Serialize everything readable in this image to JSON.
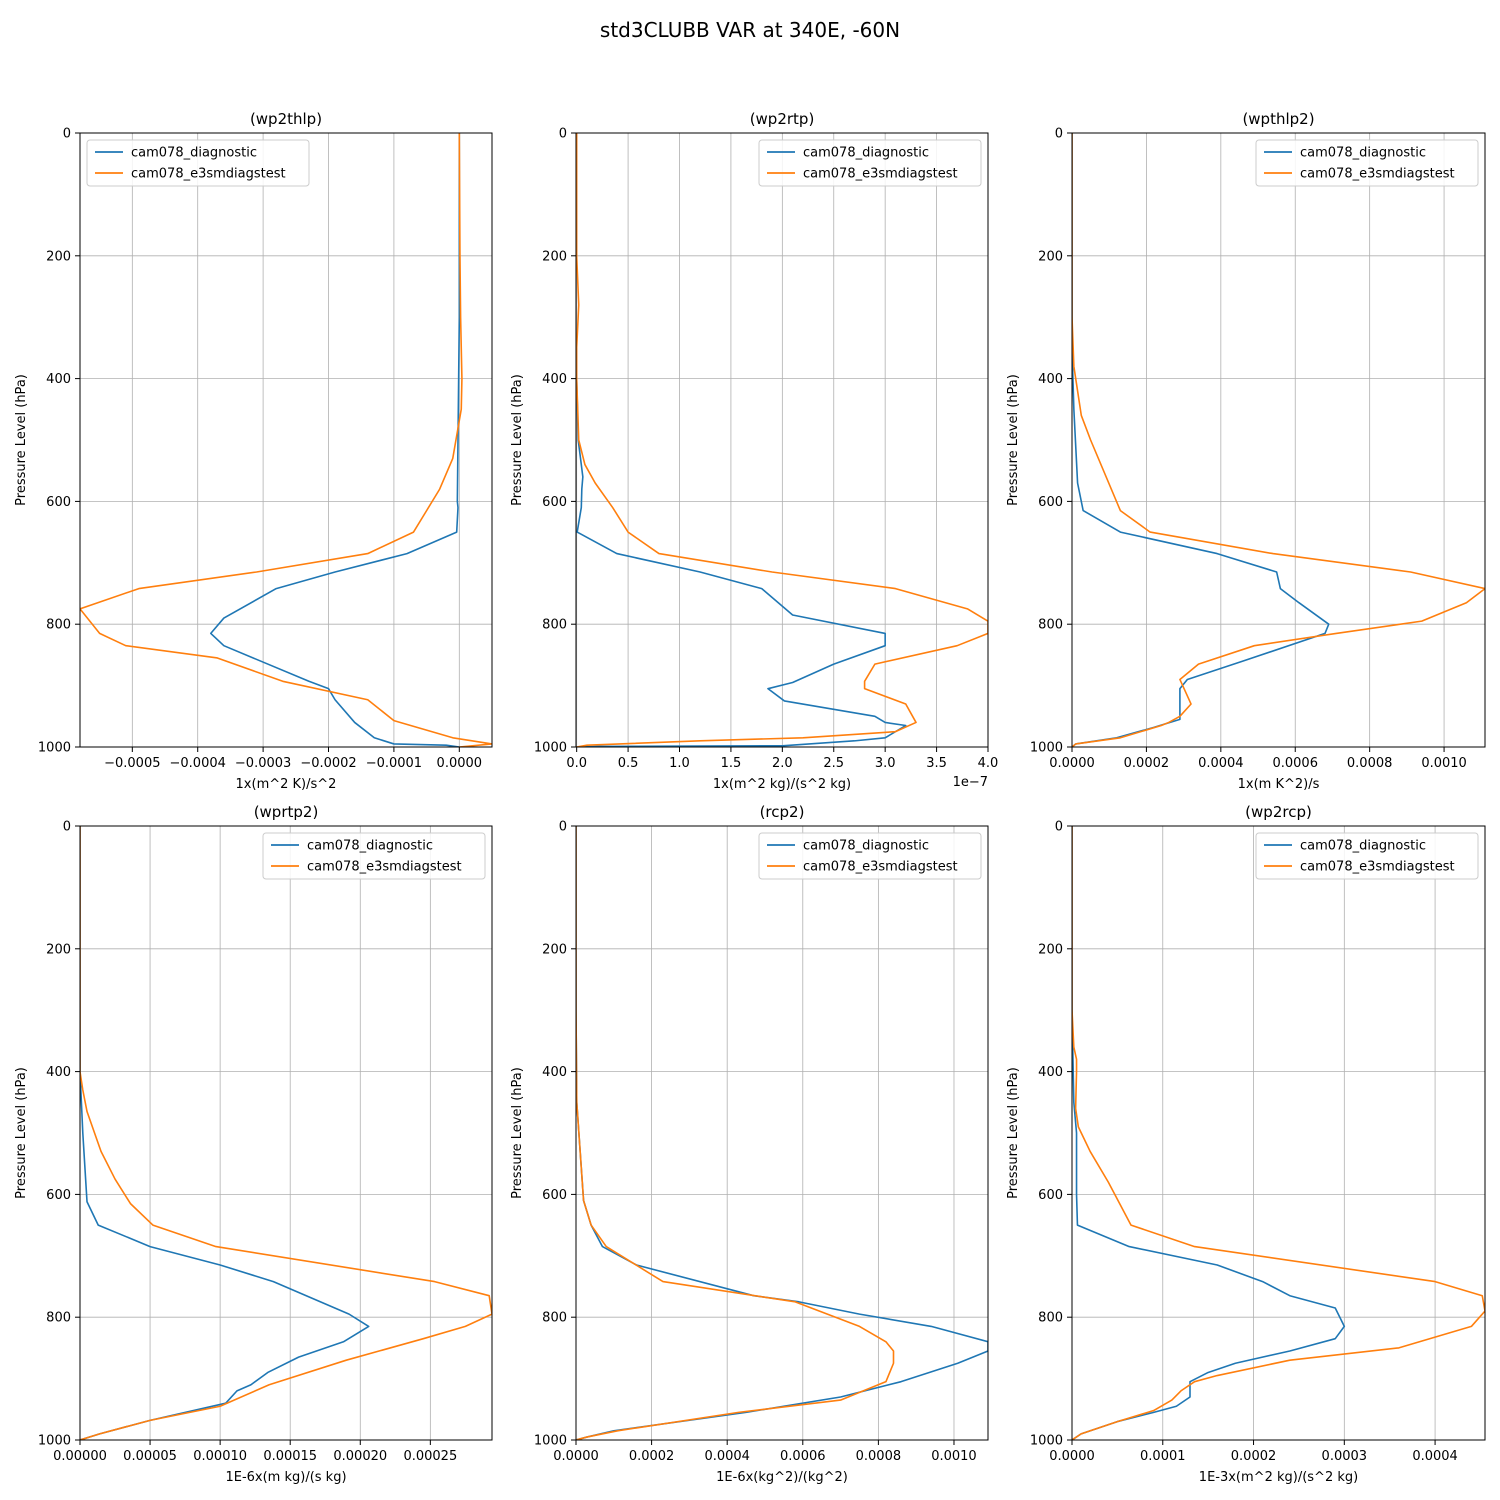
{
  "figure": {
    "suptitle": "std3CLUBB VAR at 340E, -60N",
    "series_names": [
      "cam078_diagnostic",
      "cam078_e3smdiagstest"
    ],
    "series_colors": [
      "#1f77b4",
      "#ff7f0e"
    ],
    "grid_color": "#b0b0b0"
  },
  "chart_data": [
    {
      "type": "line",
      "title": "(wp2thlp)",
      "xlabel": "1x(m^2 K)/s^2",
      "ylabel": "Pressure Level (hPa)",
      "xlim": [
        -0.00058,
        5e-05
      ],
      "ylim": [
        1000,
        0
      ],
      "xticks": [
        -0.0005,
        -0.0004,
        -0.0003,
        -0.0002,
        -0.0001,
        0.0
      ],
      "xtick_labels": [
        "−0.0005",
        "−0.0004",
        "−0.0003",
        "−0.0002",
        "−0.0001",
        "0.0000"
      ],
      "yticks": [
        0,
        200,
        400,
        600,
        800,
        1000
      ],
      "ytick_labels": [
        "0",
        "200",
        "400",
        "600",
        "800",
        "1000"
      ],
      "offset_text": "",
      "legend_loc": "upper left",
      "grid": true,
      "series": [
        {
          "name": "cam078_diagnostic",
          "x": [
            0.0,
            0.0,
            0.0,
            -1e-06,
            -2e-06,
            -3e-06,
            -2e-06,
            -4e-06,
            -8e-05,
            -0.00019,
            -0.00028,
            -0.00036,
            -0.00038,
            -0.00036,
            -0.00023,
            -0.0002,
            -0.00019,
            -0.00016,
            -0.00013,
            -0.0001,
            -2e-05,
            0.0
          ],
          "y": [
            0,
            200,
            300,
            400,
            500,
            600,
            610,
            650,
            685,
            715,
            742,
            790,
            815,
            835,
            893,
            905,
            923,
            960,
            985,
            995,
            997,
            1000
          ]
        },
        {
          "name": "cam078_e3smdiagstest",
          "x": [
            0.0,
            1e-06,
            2e-06,
            4e-06,
            3e-06,
            -1e-05,
            -3e-05,
            -5e-05,
            -7e-05,
            -0.00014,
            -0.00031,
            -0.00049,
            -0.00058,
            -0.00055,
            -0.00051,
            -0.00037,
            -0.00027,
            -0.00014,
            -0.0001,
            -1e-05,
            5e-05,
            0.0
          ],
          "y": [
            0,
            200,
            300,
            400,
            450,
            530,
            580,
            615,
            650,
            685,
            715,
            742,
            775,
            815,
            835,
            855,
            893,
            923,
            957,
            985,
            995,
            1000
          ]
        }
      ]
    },
    {
      "type": "line",
      "title": "(wp2rtp)",
      "xlabel": "1x(m^2 kg)/(s^2 kg)",
      "ylabel": "Pressure Level (hPa)",
      "xlim": [
        -6.5e-10,
        4e-07
      ],
      "ylim": [
        1000,
        0
      ],
      "xticks": [
        0.0,
        5e-08,
        1e-07,
        1.5e-07,
        2e-07,
        2.5e-07,
        3e-07,
        3.5e-07,
        4e-07
      ],
      "xtick_labels": [
        "0.0",
        "0.5",
        "1.0",
        "1.5",
        "2.0",
        "2.5",
        "3.0",
        "3.5",
        "4.0"
      ],
      "yticks": [
        0,
        200,
        400,
        600,
        800,
        1000
      ],
      "ytick_labels": [
        "0",
        "200",
        "400",
        "600",
        "800",
        "1000"
      ],
      "offset_text": "1e−7",
      "legend_loc": "upper right",
      "grid": true,
      "series": [
        {
          "name": "cam078_diagnostic",
          "x": [
            0.0,
            0.0,
            -5e-09,
            0.0,
            0.0,
            1.5e-09,
            6e-09,
            5e-09,
            4.5e-09,
            5e-10,
            3.9e-08,
            1.2e-07,
            1.8e-07,
            2.1e-07,
            3e-07,
            3e-07,
            2.5e-07,
            2.1e-07,
            1.86e-07,
            2.02e-07,
            2.9e-07,
            3e-07,
            3.2e-07,
            3e-07,
            2.7e-07,
            2e-07,
            2e-08,
            0.0
          ],
          "y": [
            0,
            200,
            300,
            350,
            400,
            500,
            560,
            580,
            610,
            650,
            685,
            715,
            742,
            785,
            815,
            835,
            865,
            895,
            905,
            925,
            950,
            960,
            965,
            985,
            990,
            998,
            999,
            1000
          ]
        },
        {
          "name": "cam078_e3smdiagstest",
          "x": [
            0.0,
            0.0,
            2e-09,
            0.0,
            0.0,
            2e-09,
            8e-09,
            1.8e-08,
            3.5e-08,
            5e-08,
            8e-08,
            1.9e-07,
            3.1e-07,
            3.8e-07,
            4e-07,
            4e-07,
            3.7e-07,
            2.9e-07,
            2.8e-07,
            2.8e-07,
            3.2e-07,
            3.3e-07,
            3.1e-07,
            2.2e-07,
            1.2e-07,
            1e-08,
            0.0
          ],
          "y": [
            0,
            200,
            280,
            350,
            400,
            500,
            540,
            570,
            610,
            650,
            685,
            715,
            742,
            775,
            795,
            815,
            835,
            865,
            893,
            905,
            930,
            960,
            975,
            985,
            990,
            997,
            1000
          ]
        }
      ]
    },
    {
      "type": "line",
      "title": "(wpthlp2)",
      "xlabel": "1x(m K^2)/s",
      "ylabel": "Pressure Level (hPa)",
      "xlim": [
        0.0,
        0.00111
      ],
      "ylim": [
        1000,
        0
      ],
      "xticks": [
        0.0,
        0.0002,
        0.0004,
        0.0006,
        0.0008,
        0.001
      ],
      "xtick_labels": [
        "0.0000",
        "0.0002",
        "0.0004",
        "0.0006",
        "0.0008",
        "0.0010"
      ],
      "yticks": [
        0,
        200,
        400,
        600,
        800,
        1000
      ],
      "ytick_labels": [
        "0",
        "200",
        "400",
        "600",
        "800",
        "1000"
      ],
      "offset_text": "",
      "legend_loc": "upper right",
      "grid": true,
      "series": [
        {
          "name": "cam078_diagnostic",
          "x": [
            0.0,
            0.0,
            0.0,
            5e-06,
            1.5e-05,
            3e-05,
            0.00013,
            0.00039,
            0.00055,
            0.00056,
            0.00061,
            0.00069,
            0.00068,
            0.00046,
            0.00031,
            0.00029,
            0.00029,
            0.00029,
            0.00022,
            0.00012,
            1e-05,
            0.0
          ],
          "y": [
            0,
            200,
            350,
            450,
            570,
            615,
            650,
            685,
            715,
            742,
            765,
            800,
            815,
            860,
            890,
            905,
            935,
            955,
            968,
            985,
            995,
            1000
          ]
        },
        {
          "name": "cam078_e3smdiagstest",
          "x": [
            0.0,
            0.0,
            5e-06,
            1.5e-05,
            2.5e-05,
            5e-05,
            0.00013,
            0.00021,
            0.00054,
            0.00091,
            0.00111,
            0.00106,
            0.00094,
            0.00071,
            0.00049,
            0.00034,
            0.00029,
            0.00032,
            0.00029,
            0.00026,
            0.00024,
            0.00013,
            1e-05,
            0.0
          ],
          "y": [
            0,
            300,
            380,
            420,
            460,
            500,
            615,
            650,
            685,
            715,
            742,
            765,
            795,
            815,
            835,
            865,
            890,
            930,
            950,
            960,
            965,
            985,
            995,
            1000
          ]
        }
      ]
    },
    {
      "type": "line",
      "title": "(wprtp2)",
      "xlabel": "1E-6x(m kg)/(s kg)",
      "ylabel": "Pressure Level (hPa)",
      "xlim": [
        0.0,
        0.000294
      ],
      "ylim": [
        1000,
        0
      ],
      "xticks": [
        0.0,
        5e-05,
        0.0001,
        0.00015,
        0.0002,
        0.00025
      ],
      "xtick_labels": [
        "0.00000",
        "0.00005",
        "0.00010",
        "0.00015",
        "0.00020",
        "0.00025"
      ],
      "yticks": [
        0,
        200,
        400,
        600,
        800,
        1000
      ],
      "ytick_labels": [
        "0",
        "200",
        "400",
        "600",
        "800",
        "1000"
      ],
      "offset_text": "",
      "legend_loc": "upper right",
      "grid": true,
      "series": [
        {
          "name": "cam078_diagnostic",
          "x": [
            0.0,
            0.0,
            0.0,
            2e-06,
            5e-06,
            1.3e-05,
            5e-05,
            0.0001,
            0.000138,
            0.000192,
            0.000206,
            0.000188,
            0.000156,
            0.000134,
            0.000122,
            0.000112,
            0.000104,
            5e-05,
            1.4e-05,
            0.0
          ],
          "y": [
            0,
            200,
            400,
            500,
            612,
            650,
            685,
            715,
            742,
            795,
            815,
            840,
            865,
            890,
            910,
            920,
            940,
            968,
            990,
            1000
          ]
        },
        {
          "name": "cam078_e3smdiagstest",
          "x": [
            0.0,
            0.0,
            0.0,
            2e-06,
            5e-06,
            1.5e-05,
            2.5e-05,
            3.6e-05,
            5.2e-05,
            9.7e-05,
            0.000253,
            0.000292,
            0.000294,
            0.000275,
            0.000245,
            0.00019,
            0.000135,
            0.0001,
            5e-05,
            1.4e-05,
            0.0
          ],
          "y": [
            0,
            200,
            400,
            430,
            465,
            530,
            575,
            615,
            650,
            685,
            742,
            765,
            795,
            815,
            835,
            870,
            910,
            945,
            968,
            990,
            1000
          ]
        }
      ]
    },
    {
      "type": "line",
      "title": "(rcp2)",
      "xlabel": "1E-6x(kg^2)/(kg^2)",
      "ylabel": "Pressure Level (hPa)",
      "xlim": [
        0.0,
        0.00109
      ],
      "ylim": [
        1000,
        0
      ],
      "xticks": [
        0.0,
        0.0002,
        0.0004,
        0.0006,
        0.0008,
        0.001
      ],
      "xtick_labels": [
        "0.0000",
        "0.0002",
        "0.0004",
        "0.0006",
        "0.0008",
        "0.0010"
      ],
      "yticks": [
        0,
        200,
        400,
        600,
        800,
        1000
      ],
      "ytick_labels": [
        "0",
        "200",
        "400",
        "600",
        "800",
        "1000"
      ],
      "offset_text": "",
      "legend_loc": "upper right",
      "grid": true,
      "series": [
        {
          "name": "cam078_diagnostic",
          "x": [
            0.0,
            0.0,
            2e-06,
            2e-05,
            4e-05,
            7e-05,
            0.00016,
            0.00047,
            0.00059,
            0.00075,
            0.00094,
            0.00109,
            0.00109,
            0.00101,
            0.00086,
            0.0007,
            0.00045,
            0.0001,
            3e-05,
            0.0
          ],
          "y": [
            0,
            300,
            450,
            610,
            650,
            685,
            715,
            765,
            775,
            795,
            815,
            840,
            855,
            875,
            905,
            930,
            955,
            985,
            995,
            1000
          ]
        },
        {
          "name": "cam078_e3smdiagstest",
          "x": [
            0.0,
            0.0,
            2e-06,
            2e-05,
            4e-05,
            8e-05,
            0.00023,
            0.00058,
            0.00075,
            0.00082,
            0.00084,
            0.00084,
            0.00082,
            0.0007,
            0.00043,
            0.00011,
            3e-05,
            0.0
          ],
          "y": [
            0,
            300,
            450,
            610,
            650,
            685,
            742,
            775,
            815,
            840,
            855,
            875,
            905,
            935,
            955,
            985,
            995,
            1000
          ]
        }
      ]
    },
    {
      "type": "line",
      "title": "(wp2rcp)",
      "xlabel": "1E-3x(m^2 kg)/(s^2 kg)",
      "ylabel": "Pressure Level (hPa)",
      "xlim": [
        0.0,
        0.000455
      ],
      "ylim": [
        1000,
        0
      ],
      "xticks": [
        0.0,
        0.0001,
        0.0002,
        0.0003,
        0.0004
      ],
      "xtick_labels": [
        "0.0000",
        "0.0001",
        "0.0002",
        "0.0003",
        "0.0004"
      ],
      "yticks": [
        0,
        200,
        400,
        600,
        800,
        1000
      ],
      "ytick_labels": [
        "0",
        "200",
        "400",
        "600",
        "800",
        "1000"
      ],
      "offset_text": "",
      "legend_loc": "upper right",
      "grid": true,
      "series": [
        {
          "name": "cam078_diagnostic",
          "x": [
            0.0,
            0.0,
            2e-06,
            5e-06,
            5e-06,
            6e-06,
            6.3e-05,
            0.00016,
            0.00021,
            0.00024,
            0.00029,
            0.0003,
            0.00029,
            0.00024,
            0.00018,
            0.00015,
            0.00013,
            0.00013,
            0.00013,
            0.000115,
            9e-05,
            5e-05,
            1e-05,
            0.0
          ],
          "y": [
            0,
            300,
            450,
            500,
            600,
            650,
            685,
            715,
            742,
            765,
            785,
            815,
            835,
            855,
            875,
            890,
            905,
            915,
            930,
            945,
            955,
            970,
            990,
            1000
          ]
        },
        {
          "name": "cam078_e3smdiagstest",
          "x": [
            0.0,
            0.0,
            2e-06,
            5e-06,
            5e-06,
            4e-06,
            7e-06,
            2e-05,
            4e-05,
            6.5e-05,
            0.000135,
            0.0004,
            0.000452,
            0.000455,
            0.00044,
            0.00036,
            0.00024,
            0.00016,
            0.000135,
            0.00012,
            0.00011,
            9e-05,
            5e-05,
            1e-05,
            0.0
          ],
          "y": [
            0,
            300,
            360,
            380,
            400,
            460,
            490,
            530,
            580,
            650,
            685,
            742,
            765,
            790,
            815,
            850,
            870,
            895,
            905,
            920,
            935,
            952,
            970,
            990,
            1000
          ]
        }
      ]
    }
  ]
}
